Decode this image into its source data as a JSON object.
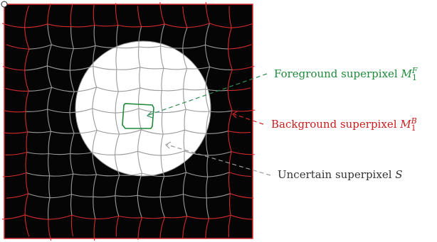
{
  "labels": {
    "foreground": {
      "text": "Foreground superpixel ",
      "var": "M",
      "sub": "1",
      "sup": "F"
    },
    "background": {
      "text": "Background superpixel ",
      "var": "M",
      "sub": "1",
      "sup": "B"
    },
    "uncertain": {
      "text": "Uncertain superpixel ",
      "var": "S"
    }
  },
  "colors": {
    "image_background": "#050505",
    "object_disc": "#ffffff",
    "border_superpixels": "#d42a2a",
    "interior_superpixels": "#9a9a9a",
    "foreground_highlight": "#1e8a3a",
    "background_label_text": "#c81e1e",
    "foreground_label_text": "#1e8a3a",
    "uncertain_label_text": "#333333",
    "arrow_foreground": "#2e8b57",
    "arrow_background": "#d42a2a",
    "arrow_uncertain": "#9a9a9a"
  }
}
